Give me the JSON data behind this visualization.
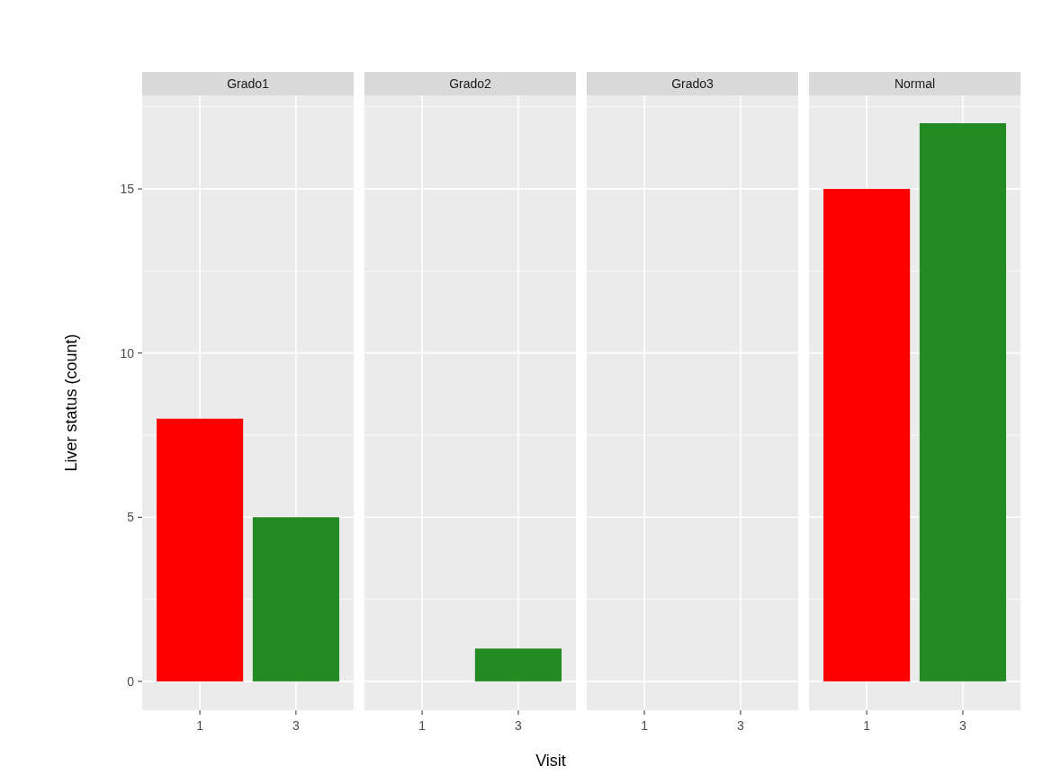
{
  "chart_data": [
    {
      "type": "bar",
      "title": "Grado1",
      "ylabel": "Liver status (count)",
      "categories": [
        "1",
        "3"
      ],
      "values": [
        8,
        5
      ],
      "colors": [
        "#ff0000",
        "#228b22"
      ],
      "ylim": [
        -0.88,
        17.85
      ],
      "yticks": [
        0,
        5,
        10,
        15
      ],
      "grid": true
    },
    {
      "type": "bar",
      "title": "Grado2",
      "xlabel": "Visit",
      "categories": [
        "1",
        "3"
      ],
      "values": [
        null,
        1
      ],
      "colors": [
        null,
        "#228b22"
      ],
      "ylim": [
        -0.88,
        17.85
      ],
      "yticks": [
        0,
        5,
        10,
        15
      ],
      "grid": true,
      "tick_labels": "x"
    },
    {
      "type": "bar",
      "title": "Grado3",
      "categories": [
        "1",
        "3"
      ],
      "values": [
        null,
        null
      ],
      "ylim": [
        -0.88,
        17.85
      ],
      "yticks": [
        0,
        5,
        10,
        15
      ],
      "grid": true,
      "tick_labels": "x"
    },
    {
      "type": "bar",
      "title": "Normal",
      "categories": [
        "1",
        "3"
      ],
      "values": [
        15,
        17
      ],
      "colors": [
        "#ff0000",
        "#228b22"
      ],
      "ylim": [
        -0.88,
        17.85
      ],
      "yticks": [
        0,
        5,
        10,
        15
      ],
      "grid": true,
      "tick_labels": "x"
    }
  ]
}
